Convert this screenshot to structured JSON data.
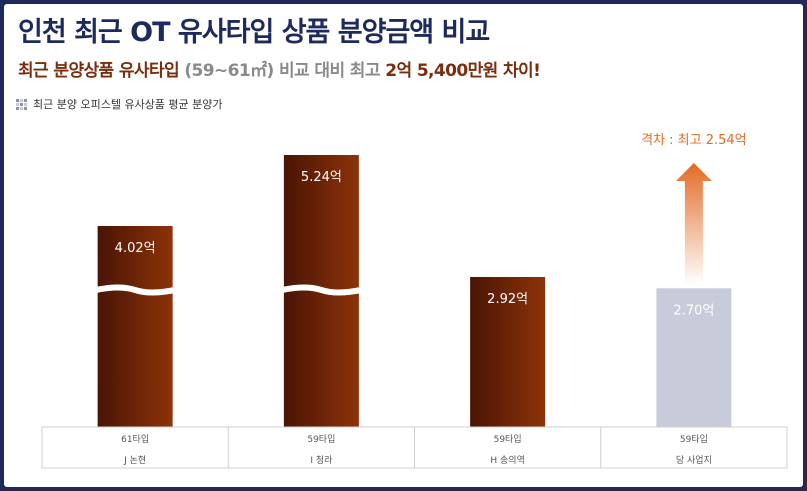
{
  "header": {
    "title": "인천 최근 OT 유사타입 상품 분양금액 비교",
    "subtitle_prefix": "최근 분양상품 유사타입",
    "subtitle_range": "(59~61㎡)",
    "subtitle_middle": "비교 대비 최고",
    "subtitle_highlight": "2억 5,400만원",
    "subtitle_suffix": "차이!"
  },
  "legend": {
    "label": "최근 분양 오피스텔 유사상품 평균 분양가"
  },
  "colors": {
    "bar_main_start": "#4a1405",
    "bar_main_end": "#8d3309",
    "bar_highlight": "#c8ccda",
    "arrow": "#e36b25",
    "title": "#1f2a5c",
    "frame": "#1f2a5c"
  },
  "chart_data": {
    "type": "bar",
    "categories": [
      {
        "type": "61타입",
        "name": "J 논현"
      },
      {
        "type": "59타입",
        "name": "I 청라"
      },
      {
        "type": "59타입",
        "name": "H 송의역"
      },
      {
        "type": "59타입",
        "name": "당 사업지"
      }
    ],
    "values": [
      4.02,
      5.24,
      2.92,
      2.7
    ],
    "value_labels": [
      "4.02억",
      "5.24억",
      "2.92억",
      "2.70억"
    ],
    "axis_break": [
      true,
      true,
      false,
      false
    ],
    "highlight_index": 3,
    "annotation": "격차 : 최고 2.54억"
  }
}
